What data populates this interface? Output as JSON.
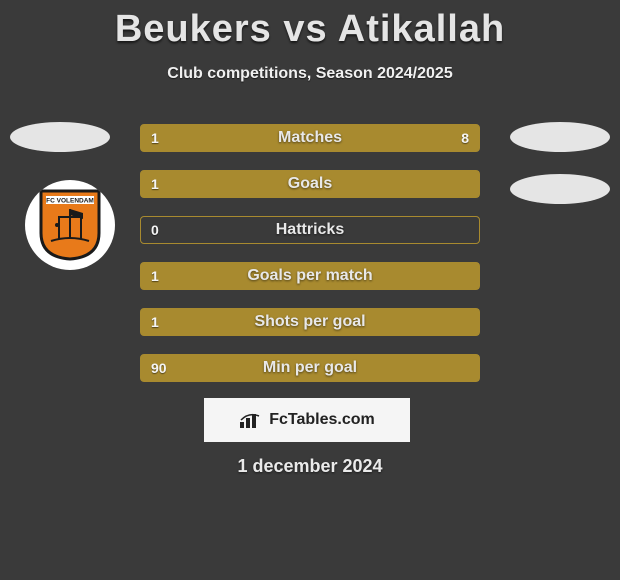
{
  "title": "Beukers vs Atikallah",
  "subtitle": "Club competitions, Season 2024/2025",
  "date_text": "1 december 2024",
  "brand_text": "FcTables.com",
  "colors": {
    "background": "#3a3a3a",
    "bar_fill": "#a88a2f",
    "bar_border": "#a88a2f",
    "text_light": "#e8e8e8",
    "brand_bg": "#f5f5f5",
    "brand_text": "#222222",
    "avatar_bg": "#e5e5e5",
    "badge_bg": "#ffffff",
    "shield_orange": "#e87a1a",
    "shield_border": "#1a1a1a"
  },
  "club_left_name": "FC VOLENDAM",
  "bars": [
    {
      "label": "Matches",
      "left_val": "1",
      "right_val": "8",
      "left_pct": 18,
      "right_pct": 82
    },
    {
      "label": "Goals",
      "left_val": "1",
      "right_val": "",
      "left_pct": 100,
      "right_pct": 0
    },
    {
      "label": "Hattricks",
      "left_val": "0",
      "right_val": "",
      "left_pct": 0,
      "right_pct": 0
    },
    {
      "label": "Goals per match",
      "left_val": "1",
      "right_val": "",
      "left_pct": 100,
      "right_pct": 0
    },
    {
      "label": "Shots per goal",
      "left_val": "1",
      "right_val": "",
      "left_pct": 100,
      "right_pct": 0
    },
    {
      "label": "Min per goal",
      "left_val": "90",
      "right_val": "",
      "left_pct": 100,
      "right_pct": 0
    }
  ]
}
